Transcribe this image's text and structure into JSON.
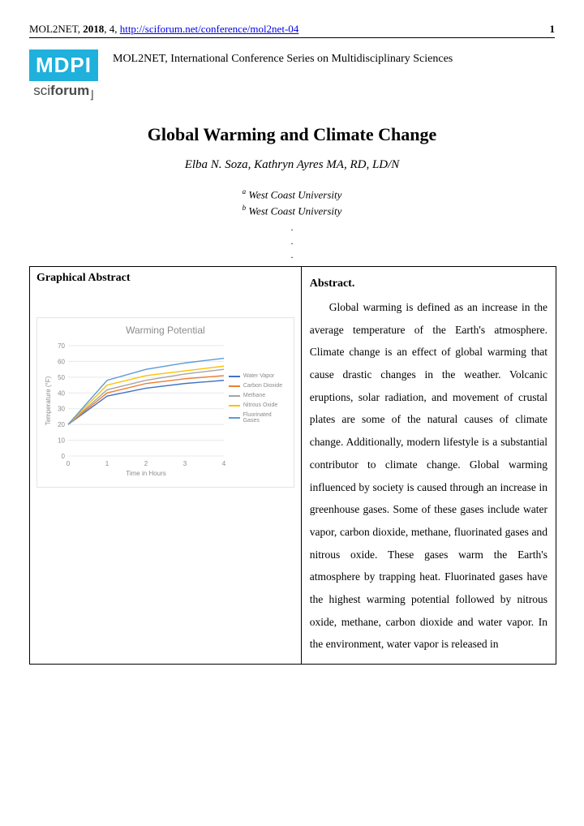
{
  "header": {
    "journal": "MOL2NET",
    "year": "2018",
    "issue": "4",
    "url_text": "http://sciforum.net/conference/mol2net-04",
    "page_num": "1"
  },
  "logo": {
    "mdpi": "MDPI",
    "sci": "sci",
    "forum": "forum"
  },
  "conference": "MOL2NET, International Conference Series on Multidisciplinary Sciences",
  "title": "Global Warming and Climate Change",
  "authors": "Elba N. Soza, Kathryn Ayres MA, RD, LD/N",
  "affiliations": [
    "West Coast University",
    "West Coast University"
  ],
  "graphical_abstract_head": "Graphical Abstract",
  "abstract_head": "Abstract.",
  "abstract_text": "Global warming is defined as an increase in the average temperature of the Earth's atmosphere. Climate change is an effect of global warming that cause drastic changes in the weather. Volcanic eruptions, solar radiation, and movement of crustal plates are some of the natural causes of climate change. Additionally, modern lifestyle is a substantial contributor to climate change. Global warming influenced by society is caused through an increase in greenhouse gases.  Some of these gases include water vapor, carbon dioxide, methane, fluorinated gases and nitrous oxide. These gases warm the Earth's atmosphere by trapping heat. Fluorinated gases have the highest warming potential followed by nitrous oxide, methane, carbon dioxide and water vapor. In the environment, water vapor is released in",
  "chart": {
    "type": "line",
    "title": "Warming Potential",
    "xlabel": "Time in Hours",
    "ylabel": "Temperature (°F)",
    "xlim": [
      0,
      4
    ],
    "ylim": [
      0,
      70
    ],
    "xtick_step": 1,
    "ytick_step": 10,
    "background_color": "#ffffff",
    "grid_color": "#e8e8e8",
    "series": [
      {
        "name": "Water Vapor",
        "color": "#4472c4",
        "values": [
          20,
          38,
          43,
          46,
          48
        ]
      },
      {
        "name": "Carbon Dioxide",
        "color": "#ed7d31",
        "values": [
          20,
          40,
          46,
          49,
          51
        ]
      },
      {
        "name": "Methane",
        "color": "#a5a5a5",
        "values": [
          20,
          42,
          48,
          52,
          55
        ]
      },
      {
        "name": "Nitrous Oxide",
        "color": "#ffc000",
        "values": [
          20,
          45,
          51,
          54,
          57
        ]
      },
      {
        "name": "Fluorinated Gases",
        "color": "#5b9bd5",
        "values": [
          20,
          48,
          55,
          59,
          62
        ]
      }
    ]
  }
}
